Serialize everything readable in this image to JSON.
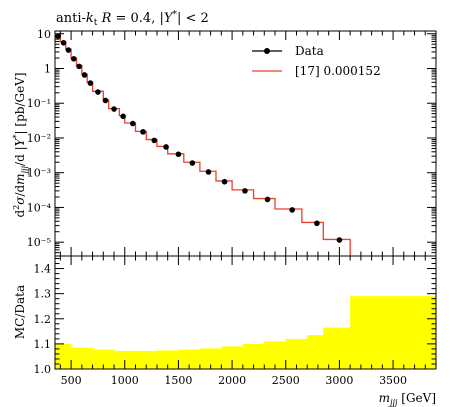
{
  "chart_data": [
    {
      "type": "line",
      "title": "anti-kt R = 0.4, |Y*| < 2",
      "ylabel": "d²σ/dm_jjj/d|Y*| [pb/GeV]",
      "xlabel": "",
      "xlim": [
        350,
        3900
      ],
      "ylim": [
        4e-06,
        12
      ],
      "yscale": "log",
      "yticks": [
        "10⁻⁵",
        "10⁻⁴",
        "10⁻³",
        "10⁻²",
        "10⁻¹",
        "1",
        "10"
      ],
      "legend_position": "top-right",
      "series": [
        {
          "name": "Data",
          "style": "points",
          "color": "#000000",
          "x": [
            380,
            430,
            475,
            525,
            575,
            625,
            680,
            750,
            820,
            900,
            985,
            1075,
            1170,
            1275,
            1385,
            1500,
            1630,
            1780,
            1930,
            2120,
            2330,
            2560,
            2790,
            3000
          ],
          "y": [
            8.5,
            5.5,
            3.4,
            1.9,
            1.15,
            0.65,
            0.38,
            0.21,
            0.12,
            0.068,
            0.042,
            0.026,
            0.015,
            0.0085,
            0.0055,
            0.0034,
            0.0019,
            0.00105,
            0.00055,
            0.0003,
            0.00017,
            8.5e-05,
            3.5e-05,
            1.15e-05
          ]
        },
        {
          "name": "[17] 0.000152",
          "style": "histogram",
          "color": "#e8412d",
          "edges": [
            360,
            400,
            450,
            500,
            550,
            600,
            650,
            700,
            800,
            850,
            950,
            1000,
            1100,
            1200,
            1300,
            1400,
            1550,
            1700,
            1850,
            2000,
            2200,
            2400,
            2650,
            2850,
            3100
          ],
          "values": [
            9.0,
            5.8,
            3.6,
            2.0,
            1.2,
            0.68,
            0.4,
            0.22,
            0.125,
            0.07,
            0.044,
            0.027,
            0.0155,
            0.009,
            0.0057,
            0.0035,
            0.002,
            0.0011,
            0.00058,
            0.00032,
            0.00018,
            9e-05,
            3.7e-05,
            1.2e-05
          ]
        }
      ]
    },
    {
      "type": "area",
      "ylabel": "MC/Data",
      "xlabel": "m_jjj [GeV]",
      "xlim": [
        350,
        3900
      ],
      "ylim": [
        1.0,
        1.45
      ],
      "xticks": [
        500,
        1000,
        1500,
        2000,
        2500,
        3000,
        3500
      ],
      "yticks": [
        1.0,
        1.1,
        1.2,
        1.3,
        1.4
      ],
      "series": [
        {
          "name": "",
          "color": "#ffff00",
          "edges": [
            350,
            500,
            700,
            900,
            1100,
            1300,
            1500,
            1700,
            1900,
            2100,
            2300,
            2500,
            2700,
            2850,
            3100,
            3900
          ],
          "values": [
            1.1,
            1.085,
            1.077,
            1.072,
            1.072,
            1.074,
            1.077,
            1.082,
            1.09,
            1.1,
            1.11,
            1.12,
            1.135,
            1.165,
            1.29
          ]
        }
      ]
    }
  ]
}
